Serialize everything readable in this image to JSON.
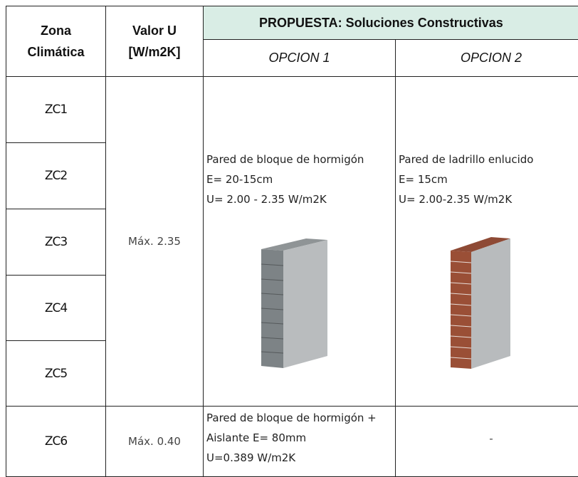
{
  "table": {
    "header": {
      "zona": [
        "Zona",
        "Climática"
      ],
      "valor": [
        "Valor U",
        "[W/m2K]"
      ],
      "propuesta": "PROPUESTA: Soluciones Constructivas",
      "opciones": [
        "OPCION 1",
        "OPCION 2"
      ]
    },
    "zones": [
      "ZC1",
      "ZC2",
      "ZC3",
      "ZC4",
      "ZC5",
      "ZC6"
    ],
    "groups": [
      {
        "valor": "Máx. 2.35",
        "opcion1": [
          "Pared de bloque de hormigón",
          "E= 20-15cm",
          "U= 2.00 - 2.35 W/m2K"
        ],
        "opcion2": [
          "Pared de ladrillo enlucido",
          "E= 15cm",
          "U= 2.00-2.35 W/m2K"
        ]
      },
      {
        "valor": "Máx. 0.40",
        "opcion1": [
          "Pared de bloque de hormigón +",
          "Aislante E= 80mm",
          "U=0.389 W/m2K"
        ],
        "opcion2": [
          "-"
        ]
      }
    ]
  }
}
